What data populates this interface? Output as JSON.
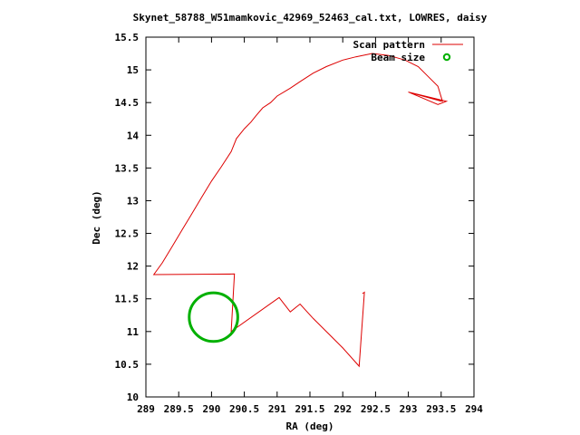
{
  "chart_data": {
    "type": "scatter",
    "title": "Skynet_58788_W51mamkovic_42969_52463_cal.txt, LOWRES, daisy",
    "xlabel": "RA (deg)",
    "ylabel": "Dec (deg)",
    "xlim": [
      289,
      294
    ],
    "ylim": [
      10,
      15.5
    ],
    "xticks": [
      "289",
      "289.5",
      "290",
      "290.5",
      "291",
      "291.5",
      "292",
      "292.5",
      "293",
      "293.5",
      "294"
    ],
    "yticks": [
      "10",
      "10.5",
      "11",
      "11.5",
      "12",
      "12.5",
      "13",
      "13.5",
      "14",
      "14.5",
      "15",
      "15.5"
    ],
    "legend_position": "top-right",
    "series": [
      {
        "name": "Scan pattern",
        "style": "line",
        "color": "#dd0000",
        "points": [
          [
            292.3,
            11.58
          ],
          [
            292.33,
            11.6
          ],
          [
            292.25,
            10.47
          ],
          [
            292.0,
            10.75
          ],
          [
            291.85,
            10.9
          ],
          [
            291.55,
            11.2
          ],
          [
            291.35,
            11.42
          ],
          [
            291.3,
            11.38
          ],
          [
            291.2,
            11.3
          ],
          [
            291.03,
            11.52
          ],
          [
            290.3,
            11.0
          ],
          [
            290.35,
            11.88
          ],
          [
            289.12,
            11.87
          ],
          [
            289.25,
            12.05
          ],
          [
            289.4,
            12.3
          ],
          [
            289.55,
            12.55
          ],
          [
            289.7,
            12.8
          ],
          [
            289.85,
            13.05
          ],
          [
            290.0,
            13.3
          ],
          [
            290.15,
            13.52
          ],
          [
            290.3,
            13.75
          ],
          [
            290.38,
            13.95
          ],
          [
            290.5,
            14.1
          ],
          [
            290.6,
            14.2
          ],
          [
            290.68,
            14.3
          ],
          [
            290.78,
            14.42
          ],
          [
            290.9,
            14.5
          ],
          [
            291.0,
            14.6
          ],
          [
            291.2,
            14.72
          ],
          [
            291.35,
            14.82
          ],
          [
            291.55,
            14.95
          ],
          [
            291.75,
            15.05
          ],
          [
            292.0,
            15.15
          ],
          [
            292.2,
            15.2
          ],
          [
            292.45,
            15.25
          ],
          [
            292.7,
            15.22
          ],
          [
            292.95,
            15.15
          ],
          [
            293.15,
            15.05
          ],
          [
            293.3,
            14.9
          ],
          [
            293.45,
            14.75
          ],
          [
            293.52,
            14.52
          ],
          [
            293.0,
            14.66
          ],
          [
            293.45,
            14.47
          ],
          [
            293.58,
            14.52
          ],
          [
            293.0,
            14.66
          ],
          [
            293.5,
            14.52
          ]
        ]
      },
      {
        "name": "Beam size",
        "style": "circle",
        "color": "#00b000",
        "center": [
          290.03,
          11.22
        ],
        "radius_deg": 0.37
      }
    ]
  }
}
